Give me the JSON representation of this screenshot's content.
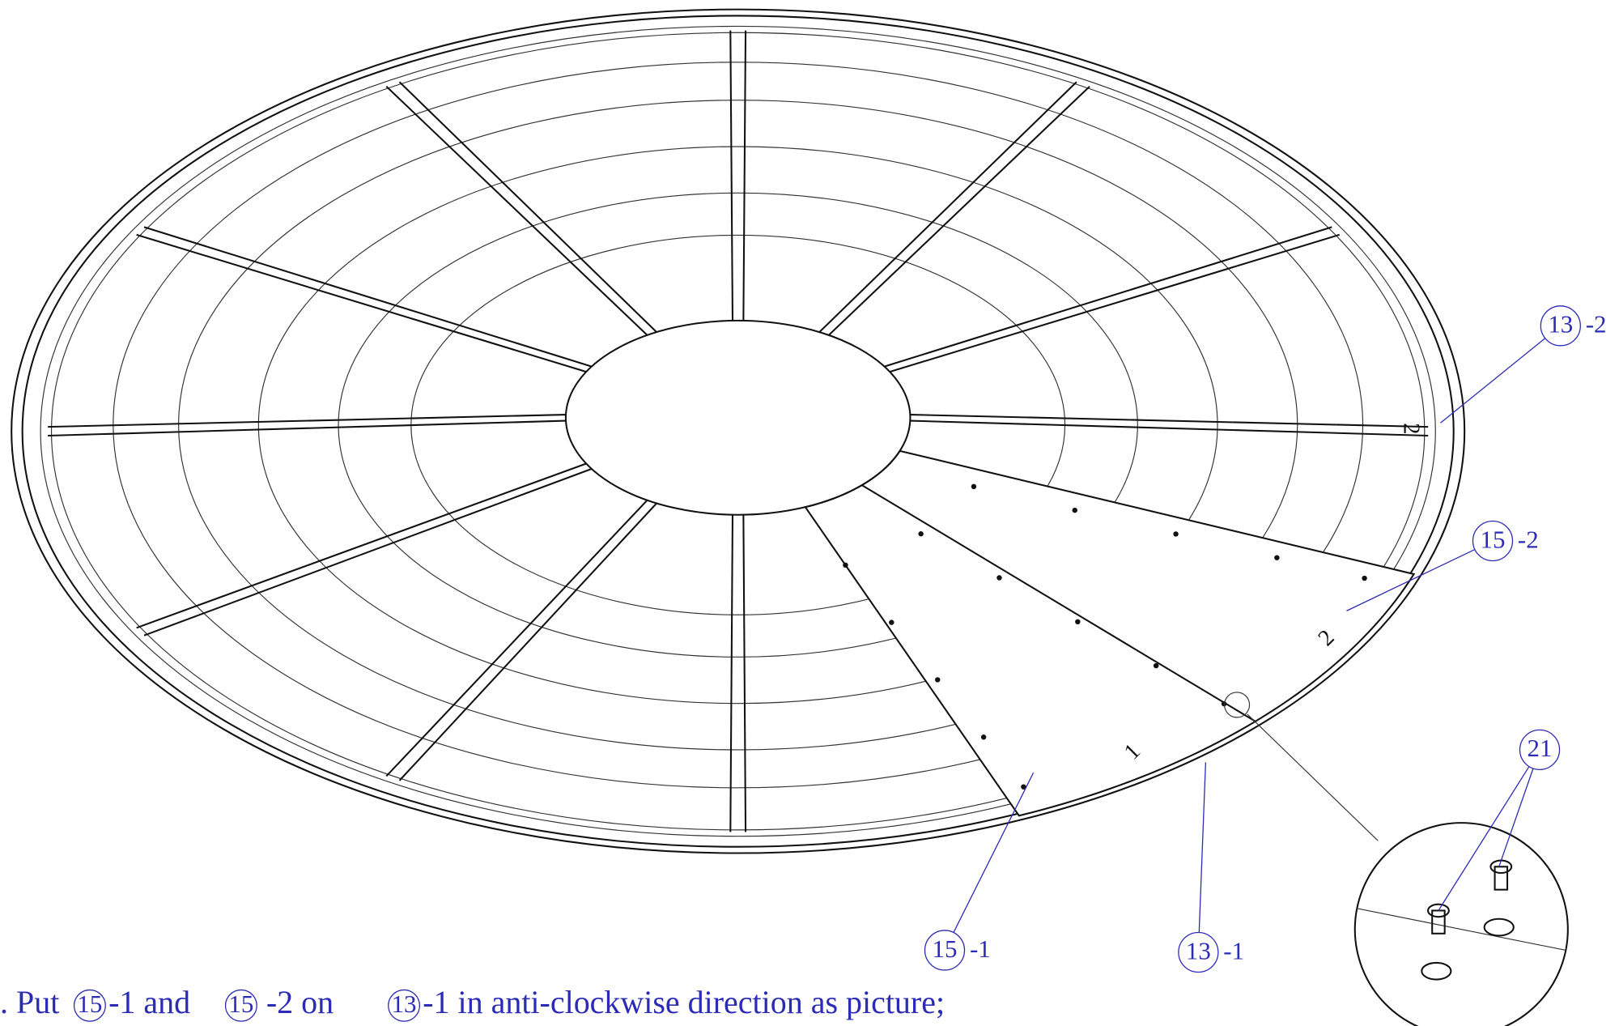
{
  "callouts": [
    {
      "number": "13",
      "suffix": "-2"
    },
    {
      "number": "15",
      "suffix": "-2"
    },
    {
      "number": "21"
    },
    {
      "number": "15",
      "suffix": "-1"
    },
    {
      "number": "13",
      "suffix": "-1"
    }
  ],
  "panel_labels": [
    "2",
    "2",
    "1"
  ],
  "instruction": {
    "prefix": ". Put",
    "ref1": "15",
    "text1": "-1 and",
    "ref2": "15",
    "text2": "-2 on",
    "ref3": "13",
    "text3": "-1 in anti-clockwise direction as picture;"
  }
}
